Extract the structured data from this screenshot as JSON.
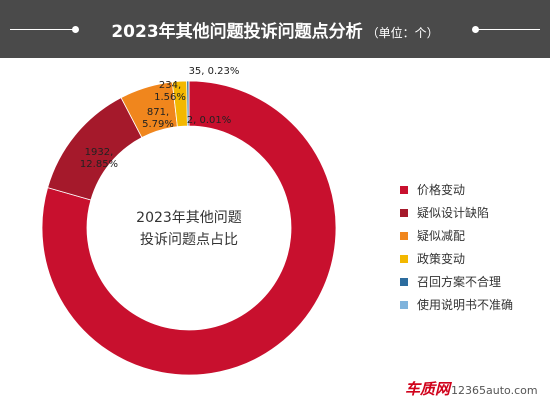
{
  "header": {
    "title": "2023年其他问题投诉问题点分析",
    "unit": "（单位：个）"
  },
  "colors": {
    "header_bg": "#4a4a4a"
  },
  "chart_data": {
    "type": "pie",
    "variant": "donut",
    "center_label": [
      "2023年其他问题",
      "投诉问题点占比"
    ],
    "legend_position": "right",
    "slices": [
      {
        "name": "价格变动",
        "value": 11866,
        "percent": "79.00%",
        "color": "#c8102e",
        "label": ""
      },
      {
        "name": "疑似设计缺陷",
        "value": 1932,
        "percent": "12.85%",
        "color": "#a5192b",
        "label": "1932, 12.85%"
      },
      {
        "name": "疑似减配",
        "value": 871,
        "percent": "5.79%",
        "color": "#f0861d",
        "label": "871, 5.79%"
      },
      {
        "name": "政策变动",
        "value": 234,
        "percent": "1.56%",
        "color": "#f3b800",
        "label": "234, 1.56%"
      },
      {
        "name": "召回方案不合理",
        "value": 35,
        "percent": "0.23%",
        "color": "#2c6c9e",
        "label": "35, 0.23%"
      },
      {
        "name": "使用说明书不准确",
        "value": 2,
        "percent": "0.01%",
        "color": "#7fb3dc",
        "label": "2, 0.01%"
      }
    ]
  },
  "watermark": {
    "brand": "车质网",
    "site": "12365auto.com"
  }
}
